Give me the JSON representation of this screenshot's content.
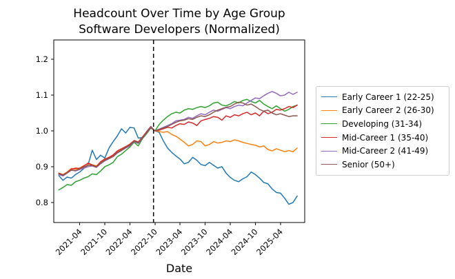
{
  "chart_data": {
    "type": "line",
    "title": "Headcount Over Time by Age Group",
    "subtitle": "Software Developers (Normalized)",
    "xlabel": "Date",
    "ylabel": "",
    "grid": false,
    "legend_position": "outside-right",
    "ylim": [
      0.744,
      1.254
    ],
    "y_ticks": [
      0.8,
      0.9,
      1.0,
      1.1,
      1.2
    ],
    "x_tick_labels": [
      "2021-04",
      "2021-10",
      "2022-04",
      "2022-10",
      "2023-04",
      "2023-10",
      "2024-04",
      "2024-10",
      "2025-04"
    ],
    "x": [
      "2020-11",
      "2020-12",
      "2021-01",
      "2021-02",
      "2021-03",
      "2021-04",
      "2021-05",
      "2021-06",
      "2021-07",
      "2021-08",
      "2021-09",
      "2021-10",
      "2021-11",
      "2021-12",
      "2022-01",
      "2022-02",
      "2022-03",
      "2022-04",
      "2022-05",
      "2022-06",
      "2022-07",
      "2022-08",
      "2022-09",
      "2022-10",
      "2022-11",
      "2022-12",
      "2023-01",
      "2023-02",
      "2023-03",
      "2023-04",
      "2023-05",
      "2023-06",
      "2023-07",
      "2023-08",
      "2023-09",
      "2023-10",
      "2023-11",
      "2023-12",
      "2024-01",
      "2024-02",
      "2024-03",
      "2024-04",
      "2024-05",
      "2024-06",
      "2024-07",
      "2024-08",
      "2024-09",
      "2024-10",
      "2024-11",
      "2024-12",
      "2025-01",
      "2025-02",
      "2025-03",
      "2025-04",
      "2025-05",
      "2025-06",
      "2025-07",
      "2025-08"
    ],
    "vline": {
      "style": "dashed",
      "color": "#000000",
      "month_index": 22.65,
      "between_months": [
        "2022-09",
        "2022-10"
      ],
      "note": "normalization reference line, all series = 1.0"
    },
    "series": [
      {
        "name": "Early Career 1 (22-25)",
        "color": "#1f77b4",
        "values": [
          0.875,
          0.862,
          0.871,
          0.868,
          0.878,
          0.885,
          0.895,
          0.905,
          0.946,
          0.92,
          0.932,
          0.924,
          0.952,
          0.97,
          0.986,
          1.006,
          0.994,
          1.01,
          1.008,
          0.98,
          0.981,
          0.998,
          1.012,
          1.0,
          0.996,
          0.972,
          0.952,
          0.94,
          0.93,
          0.921,
          0.908,
          0.912,
          0.926,
          0.918,
          0.906,
          0.903,
          0.912,
          0.904,
          0.896,
          0.9,
          0.882,
          0.87,
          0.862,
          0.858,
          0.866,
          0.872,
          0.885,
          0.878,
          0.868,
          0.856,
          0.852,
          0.838,
          0.828,
          0.826,
          0.812,
          0.795,
          0.8,
          0.818
        ]
      },
      {
        "name": "Early Career 2 (26-30)",
        "color": "#ff7f0e",
        "values": [
          0.882,
          0.878,
          0.885,
          0.895,
          0.893,
          0.896,
          0.903,
          0.908,
          0.905,
          0.902,
          0.913,
          0.922,
          0.925,
          0.932,
          0.94,
          0.948,
          0.953,
          0.96,
          0.97,
          0.966,
          0.98,
          0.996,
          1.008,
          1.0,
          0.998,
          0.996,
          0.998,
          0.99,
          0.985,
          0.977,
          0.968,
          0.958,
          0.962,
          0.972,
          0.97,
          0.958,
          0.962,
          0.97,
          0.966,
          0.968,
          0.972,
          0.97,
          0.975,
          0.972,
          0.968,
          0.965,
          0.962,
          0.96,
          0.955,
          0.958,
          0.948,
          0.944,
          0.95,
          0.946,
          0.942,
          0.945,
          0.942,
          0.952
        ]
      },
      {
        "name": "Developing (31-34)",
        "color": "#2ca02c",
        "values": [
          0.835,
          0.842,
          0.85,
          0.848,
          0.858,
          0.862,
          0.868,
          0.872,
          0.88,
          0.878,
          0.888,
          0.9,
          0.905,
          0.912,
          0.928,
          0.935,
          0.945,
          0.955,
          0.968,
          0.958,
          0.978,
          0.992,
          1.008,
          1.0,
          1.018,
          1.03,
          1.04,
          1.048,
          1.052,
          1.05,
          1.058,
          1.062,
          1.06,
          1.065,
          1.068,
          1.065,
          1.07,
          1.078,
          1.08,
          1.072,
          1.07,
          1.075,
          1.082,
          1.078,
          1.085,
          1.088,
          1.082,
          1.078,
          1.085,
          1.075,
          1.068,
          1.062,
          1.07,
          1.062,
          1.055,
          1.06,
          1.068,
          1.072
        ]
      },
      {
        "name": "Mid-Career 1 (35-40)",
        "color": "#d62728",
        "values": [
          0.882,
          0.877,
          0.884,
          0.893,
          0.896,
          0.895,
          0.902,
          0.91,
          0.905,
          0.9,
          0.914,
          0.921,
          0.926,
          0.933,
          0.944,
          0.95,
          0.956,
          0.963,
          0.973,
          0.969,
          0.983,
          0.997,
          1.012,
          1.0,
          1.002,
          1.006,
          1.01,
          1.008,
          1.015,
          1.02,
          1.018,
          1.025,
          1.022,
          1.015,
          1.028,
          1.032,
          1.035,
          1.04,
          1.038,
          1.03,
          1.042,
          1.038,
          1.045,
          1.042,
          1.048,
          1.052,
          1.045,
          1.05,
          1.042,
          1.055,
          1.048,
          1.052,
          1.06,
          1.058,
          1.062,
          1.068,
          1.065,
          1.072
        ]
      },
      {
        "name": "Mid-Career 2 (41-49)",
        "color": "#9467bd",
        "values": [
          0.878,
          0.874,
          0.882,
          0.89,
          0.888,
          0.892,
          0.896,
          0.9,
          0.902,
          0.898,
          0.908,
          0.916,
          0.922,
          0.928,
          0.938,
          0.945,
          0.952,
          0.958,
          0.97,
          0.965,
          0.98,
          0.994,
          1.01,
          1.0,
          1.005,
          1.01,
          1.015,
          1.02,
          1.028,
          1.03,
          1.032,
          1.038,
          1.035,
          1.042,
          1.048,
          1.045,
          1.052,
          1.058,
          1.055,
          1.06,
          1.065,
          1.062,
          1.068,
          1.072,
          1.07,
          1.078,
          1.085,
          1.092,
          1.09,
          1.098,
          1.105,
          1.11,
          1.105,
          1.098,
          1.1,
          1.108,
          1.102,
          1.108
        ]
      },
      {
        "name": "Senior (50+)",
        "color": "#8c564b",
        "values": [
          0.88,
          0.876,
          0.883,
          0.891,
          0.889,
          0.894,
          0.899,
          0.904,
          0.903,
          0.899,
          0.91,
          0.918,
          0.923,
          0.929,
          0.94,
          0.946,
          0.954,
          0.96,
          0.971,
          0.967,
          0.981,
          0.995,
          1.009,
          1.0,
          1.004,
          1.008,
          1.012,
          1.018,
          1.024,
          1.028,
          1.03,
          1.034,
          1.032,
          1.038,
          1.042,
          1.04,
          1.045,
          1.052,
          1.058,
          1.062,
          1.066,
          1.068,
          1.075,
          1.08,
          1.078,
          1.072,
          1.075,
          1.068,
          1.06,
          1.055,
          1.058,
          1.05,
          1.045,
          1.048,
          1.044,
          1.04,
          1.042,
          1.042
        ]
      }
    ]
  }
}
